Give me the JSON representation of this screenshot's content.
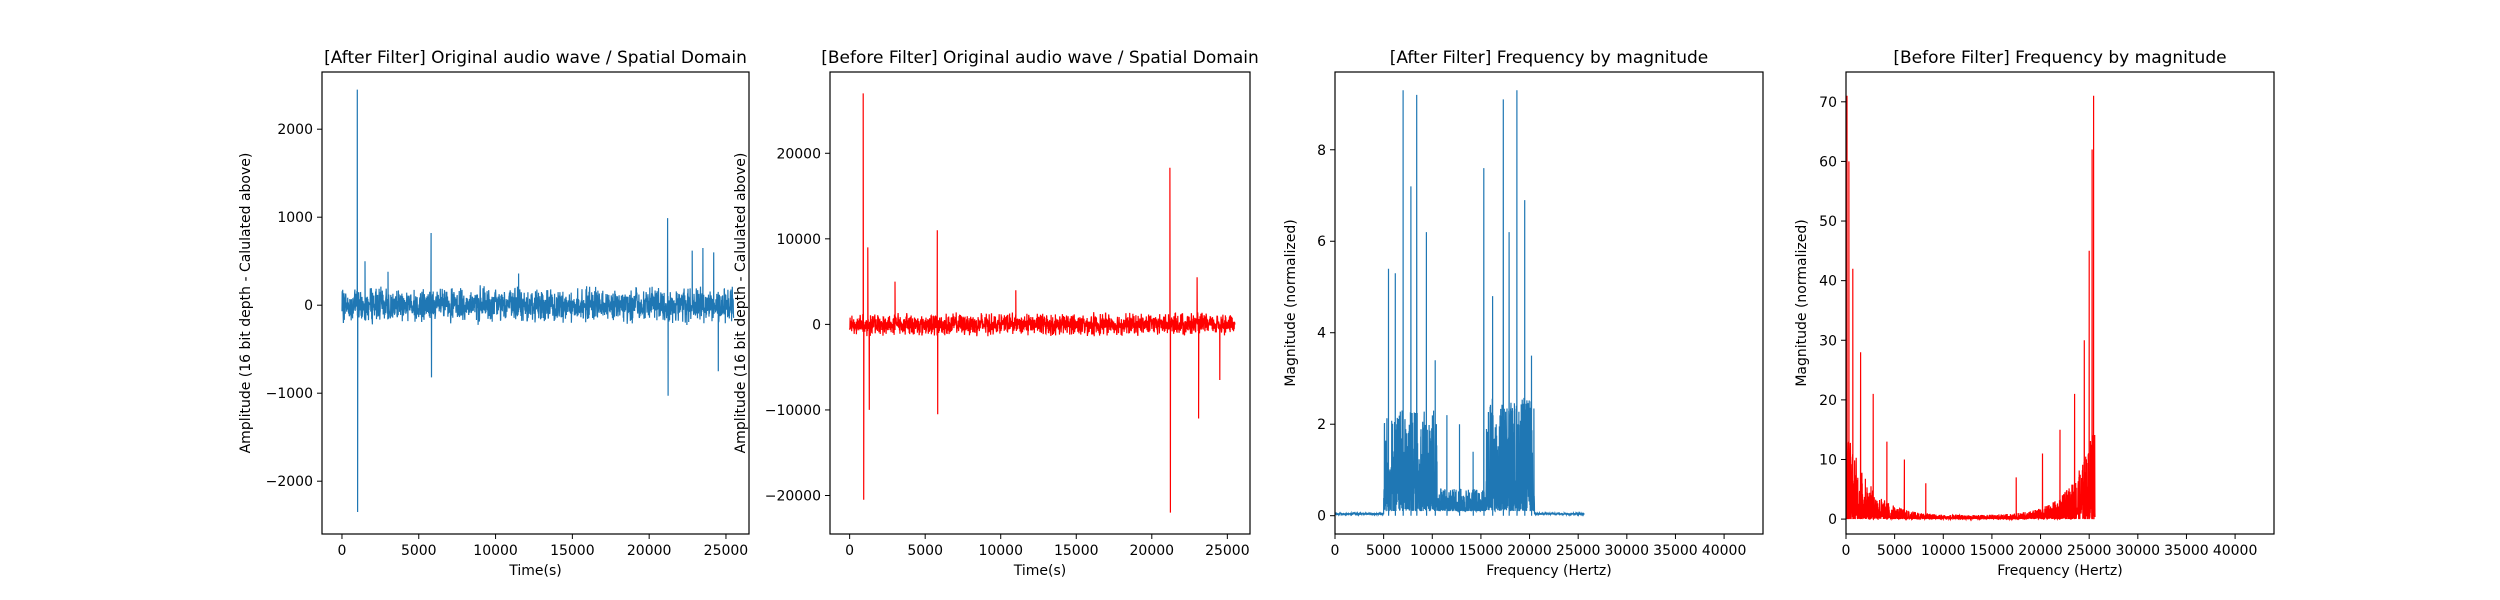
{
  "colors": {
    "after": "#1f77b4",
    "before": "#ff0000"
  },
  "chart_data": [
    {
      "id": "after-wave",
      "type": "line",
      "title": "[After Filter] Original audio wave / Spatial Domain",
      "xlabel": "Time(s)",
      "ylabel": "Amplitude (16 bit depth - Calulated above)",
      "xlim": [
        -1300,
        26500
      ],
      "ylim": [
        -2600,
        2650
      ],
      "xticks": [
        0,
        5000,
        10000,
        15000,
        20000,
        25000
      ],
      "yticks": [
        -2000,
        -1000,
        0,
        1000,
        2000
      ],
      "color": "after",
      "grid": false,
      "series": [
        {
          "baseline_noise": 230,
          "x_range": [
            0,
            25500
          ],
          "spikes": [
            {
              "x": 1000,
              "y": 2450
            },
            {
              "x": 1020,
              "y": -2350
            },
            {
              "x": 1500,
              "y": 500
            },
            {
              "x": 3000,
              "y": 380
            },
            {
              "x": 5800,
              "y": 820
            },
            {
              "x": 5830,
              "y": -820
            },
            {
              "x": 11500,
              "y": 360
            },
            {
              "x": 21200,
              "y": 990
            },
            {
              "x": 21230,
              "y": -1030
            },
            {
              "x": 22800,
              "y": 620
            },
            {
              "x": 23500,
              "y": 650
            },
            {
              "x": 24200,
              "y": 600
            },
            {
              "x": 24500,
              "y": -750
            }
          ]
        }
      ]
    },
    {
      "id": "before-wave",
      "type": "line",
      "title": "[Before Filter] Original audio wave / Spatial Domain",
      "xlabel": "Time(s)",
      "ylabel": "Amplitude (16 bit depth - Calulated above)",
      "xlim": [
        -1300,
        26500
      ],
      "ylim": [
        -24500,
        29500
      ],
      "xticks": [
        0,
        5000,
        10000,
        15000,
        20000,
        25000
      ],
      "yticks": [
        -20000,
        -10000,
        0,
        10000,
        20000
      ],
      "color": "before",
      "grid": false,
      "series": [
        {
          "baseline_noise": 1500,
          "x_range": [
            0,
            25500
          ],
          "spikes": [
            {
              "x": 900,
              "y": 27000
            },
            {
              "x": 930,
              "y": -20500
            },
            {
              "x": 1200,
              "y": 9000
            },
            {
              "x": 1300,
              "y": -10000
            },
            {
              "x": 3000,
              "y": 5000
            },
            {
              "x": 5800,
              "y": 11000
            },
            {
              "x": 5830,
              "y": -10500
            },
            {
              "x": 11000,
              "y": 4000
            },
            {
              "x": 21200,
              "y": 18300
            },
            {
              "x": 21230,
              "y": -22000
            },
            {
              "x": 23000,
              "y": 5500
            },
            {
              "x": 23100,
              "y": -11000
            },
            {
              "x": 24500,
              "y": -6500
            }
          ]
        }
      ]
    },
    {
      "id": "after-freq",
      "type": "line",
      "title": "[After Filter] Frequency by magnitude",
      "xlabel": "Frequency (Hertz)",
      "ylabel": "Magnitude (normalized)",
      "xlim": [
        0,
        44000
      ],
      "ylim": [
        -0.4,
        9.7
      ],
      "xticks": [
        0,
        5000,
        10000,
        15000,
        20000,
        25000,
        30000,
        35000,
        40000
      ],
      "yticks": [
        0,
        2,
        4,
        6,
        8
      ],
      "color": "after",
      "grid": false,
      "series": [
        {
          "x_range": [
            0,
            25600
          ],
          "bands": [
            {
              "from": 5000,
              "to": 10500,
              "noise": 2.2
            },
            {
              "from": 10500,
              "to": 15500,
              "noise": 0.5
            },
            {
              "from": 15500,
              "to": 20500,
              "noise": 2.5
            }
          ],
          "spikes": [
            {
              "x": 5500,
              "y": 5.4
            },
            {
              "x": 6200,
              "y": 5.3
            },
            {
              "x": 7000,
              "y": 9.3
            },
            {
              "x": 7800,
              "y": 7.2
            },
            {
              "x": 8400,
              "y": 9.2
            },
            {
              "x": 9400,
              "y": 6.2
            },
            {
              "x": 10300,
              "y": 3.4
            },
            {
              "x": 11500,
              "y": 2.2
            },
            {
              "x": 12800,
              "y": 2.0
            },
            {
              "x": 14200,
              "y": 1.4
            },
            {
              "x": 15300,
              "y": 7.6
            },
            {
              "x": 16200,
              "y": 4.8
            },
            {
              "x": 17300,
              "y": 9.1
            },
            {
              "x": 17900,
              "y": 6.2
            },
            {
              "x": 18700,
              "y": 9.3
            },
            {
              "x": 19500,
              "y": 6.9
            },
            {
              "x": 20200,
              "y": 3.5
            }
          ]
        }
      ]
    },
    {
      "id": "before-freq",
      "type": "line",
      "title": "[Before Filter] Frequency by magnitude",
      "xlabel": "Frequency (Hertz)",
      "ylabel": "Magnitude (normalized)",
      "xlim": [
        0,
        44000
      ],
      "ylim": [
        -2.5,
        75
      ],
      "xticks": [
        0,
        5000,
        10000,
        15000,
        20000,
        25000,
        30000,
        35000,
        40000
      ],
      "yticks": [
        0,
        10,
        20,
        30,
        40,
        50,
        60,
        70
      ],
      "color": "before",
      "grid": false,
      "series": [
        {
          "x_range": [
            0,
            25600
          ],
          "envelope": "u-shape",
          "spikes": [
            {
              "x": 100,
              "y": 71
            },
            {
              "x": 300,
              "y": 60
            },
            {
              "x": 700,
              "y": 42
            },
            {
              "x": 1500,
              "y": 28
            },
            {
              "x": 2800,
              "y": 21
            },
            {
              "x": 4200,
              "y": 13
            },
            {
              "x": 6000,
              "y": 10
            },
            {
              "x": 8200,
              "y": 6
            },
            {
              "x": 17500,
              "y": 7
            },
            {
              "x": 20200,
              "y": 11
            },
            {
              "x": 22000,
              "y": 15
            },
            {
              "x": 23500,
              "y": 21
            },
            {
              "x": 24500,
              "y": 30
            },
            {
              "x": 25000,
              "y": 45
            },
            {
              "x": 25300,
              "y": 62
            },
            {
              "x": 25450,
              "y": 71
            }
          ]
        }
      ]
    }
  ]
}
